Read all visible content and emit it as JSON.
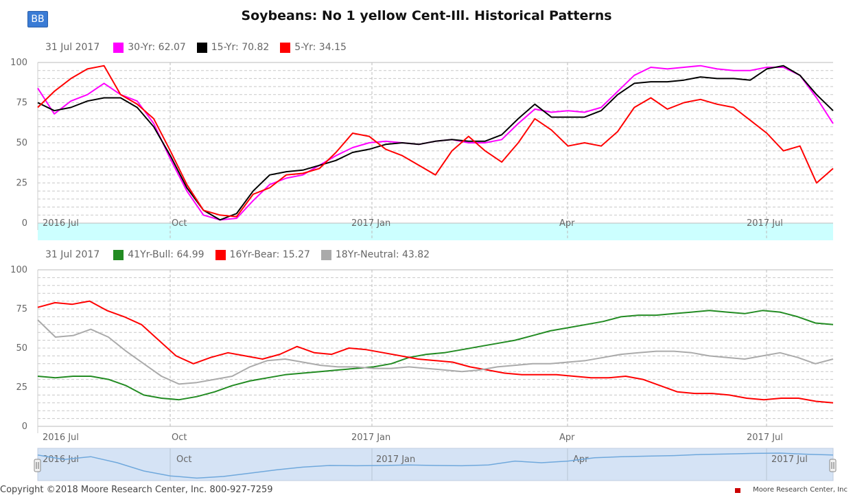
{
  "badge": "BB",
  "title": "Soybeans: No 1 yellow Cent-Ill. Historical Patterns",
  "footer": {
    "copyright": "Copyright ©2018 Moore Research Center, Inc. 800-927-7259",
    "brand": "Moore Research Center, Inc"
  },
  "colors": {
    "magenta": "#ff00ff",
    "black": "#000000",
    "red": "#ff0000",
    "green": "#228b22",
    "gray": "#aaaaaa",
    "cyan_band": "#ccffff",
    "navigator_fill": "#d5e3f5"
  },
  "chart_data": [
    {
      "type": "line",
      "legend_date": "31 Jul 2017",
      "ylim": [
        0,
        100
      ],
      "yticks": [
        0,
        25,
        50,
        75,
        100
      ],
      "xticks": [
        "2016 Jul",
        "Oct",
        "2017 Jan",
        "Apr",
        "2017 Jul"
      ],
      "series": [
        {
          "name": "30-Yr",
          "label": "30-Yr: 62.07",
          "color": "#ff00ff",
          "values": [
            84,
            68,
            76,
            80,
            87,
            80,
            76,
            62,
            40,
            20,
            5,
            2,
            3,
            14,
            24,
            28,
            30,
            36,
            42,
            47,
            50,
            51,
            50,
            49,
            51,
            52,
            50,
            50,
            52,
            62,
            71,
            69,
            70,
            69,
            72,
            82,
            92,
            97,
            96,
            97,
            98,
            96,
            95,
            95,
            97,
            97,
            92,
            78,
            62
          ]
        },
        {
          "name": "15-Yr",
          "label": "15-Yr: 70.82",
          "color": "#000000",
          "values": [
            75,
            70,
            72,
            76,
            78,
            78,
            72,
            60,
            42,
            22,
            8,
            2,
            6,
            20,
            30,
            32,
            33,
            36,
            39,
            44,
            46,
            49,
            50,
            49,
            51,
            52,
            51,
            51,
            55,
            65,
            74,
            66,
            66,
            66,
            70,
            80,
            87,
            88,
            88,
            89,
            91,
            90,
            90,
            89,
            96,
            98,
            92,
            80,
            70
          ]
        },
        {
          "name": "5-Yr",
          "label": "5-Yr: 34.15",
          "color": "#ff0000",
          "values": [
            72,
            82,
            90,
            96,
            98,
            80,
            74,
            65,
            45,
            24,
            8,
            5,
            4,
            18,
            22,
            30,
            31,
            34,
            44,
            56,
            54,
            46,
            42,
            36,
            30,
            45,
            54,
            45,
            38,
            50,
            65,
            58,
            48,
            50,
            48,
            57,
            72,
            78,
            71,
            75,
            77,
            74,
            72,
            64,
            56,
            45,
            48,
            25,
            34
          ]
        }
      ]
    },
    {
      "type": "line",
      "legend_date": "31 Jul 2017",
      "ylim": [
        0,
        100
      ],
      "yticks": [
        0,
        25,
        50,
        75,
        100
      ],
      "xticks": [
        "2016 Jul",
        "Oct",
        "2017 Jan",
        "Apr",
        "2017 Jul"
      ],
      "series": [
        {
          "name": "41Yr-Bull",
          "label": "41Yr-Bull: 64.99",
          "color": "#228b22",
          "values": [
            32,
            31,
            32,
            32,
            30,
            26,
            20,
            18,
            17,
            19,
            22,
            26,
            29,
            31,
            33,
            34,
            35,
            36,
            37,
            38,
            40,
            44,
            46,
            47,
            49,
            51,
            53,
            55,
            58,
            61,
            63,
            65,
            67,
            70,
            71,
            71,
            72,
            73,
            74,
            73,
            72,
            74,
            73,
            70,
            66,
            65
          ]
        },
        {
          "name": "16Yr-Bear",
          "label": "16Yr-Bear: 15.27",
          "color": "#ff0000",
          "values": [
            76,
            79,
            78,
            80,
            74,
            70,
            65,
            55,
            45,
            40,
            44,
            47,
            45,
            43,
            46,
            51,
            47,
            46,
            50,
            49,
            47,
            45,
            43,
            42,
            41,
            38,
            36,
            34,
            33,
            33,
            33,
            32,
            31,
            31,
            32,
            30,
            26,
            22,
            21,
            21,
            20,
            18,
            17,
            18,
            18,
            16,
            15
          ]
        },
        {
          "name": "18Yr-Neutral",
          "label": "18Yr-Neutral: 43.82",
          "color": "#aaaaaa",
          "values": [
            68,
            57,
            58,
            62,
            57,
            48,
            40,
            32,
            27,
            28,
            30,
            32,
            38,
            42,
            43,
            41,
            39,
            38,
            38,
            37,
            37,
            38,
            37,
            36,
            35,
            36,
            38,
            39,
            40,
            40,
            41,
            42,
            44,
            46,
            47,
            48,
            48,
            47,
            45,
            44,
            43,
            45,
            47,
            44,
            40,
            43
          ]
        }
      ]
    }
  ],
  "navigator": {
    "labels": [
      "2016 Jul",
      "Oct",
      "2017 Jan",
      "Apr",
      "2017 Jul"
    ],
    "values": [
      88,
      72,
      82,
      60,
      30,
      12,
      4,
      10,
      22,
      34,
      44,
      50,
      49,
      50,
      52,
      50,
      49,
      52,
      66,
      60,
      66,
      78,
      82,
      84,
      86,
      90,
      92,
      94,
      95,
      91,
      88
    ]
  }
}
